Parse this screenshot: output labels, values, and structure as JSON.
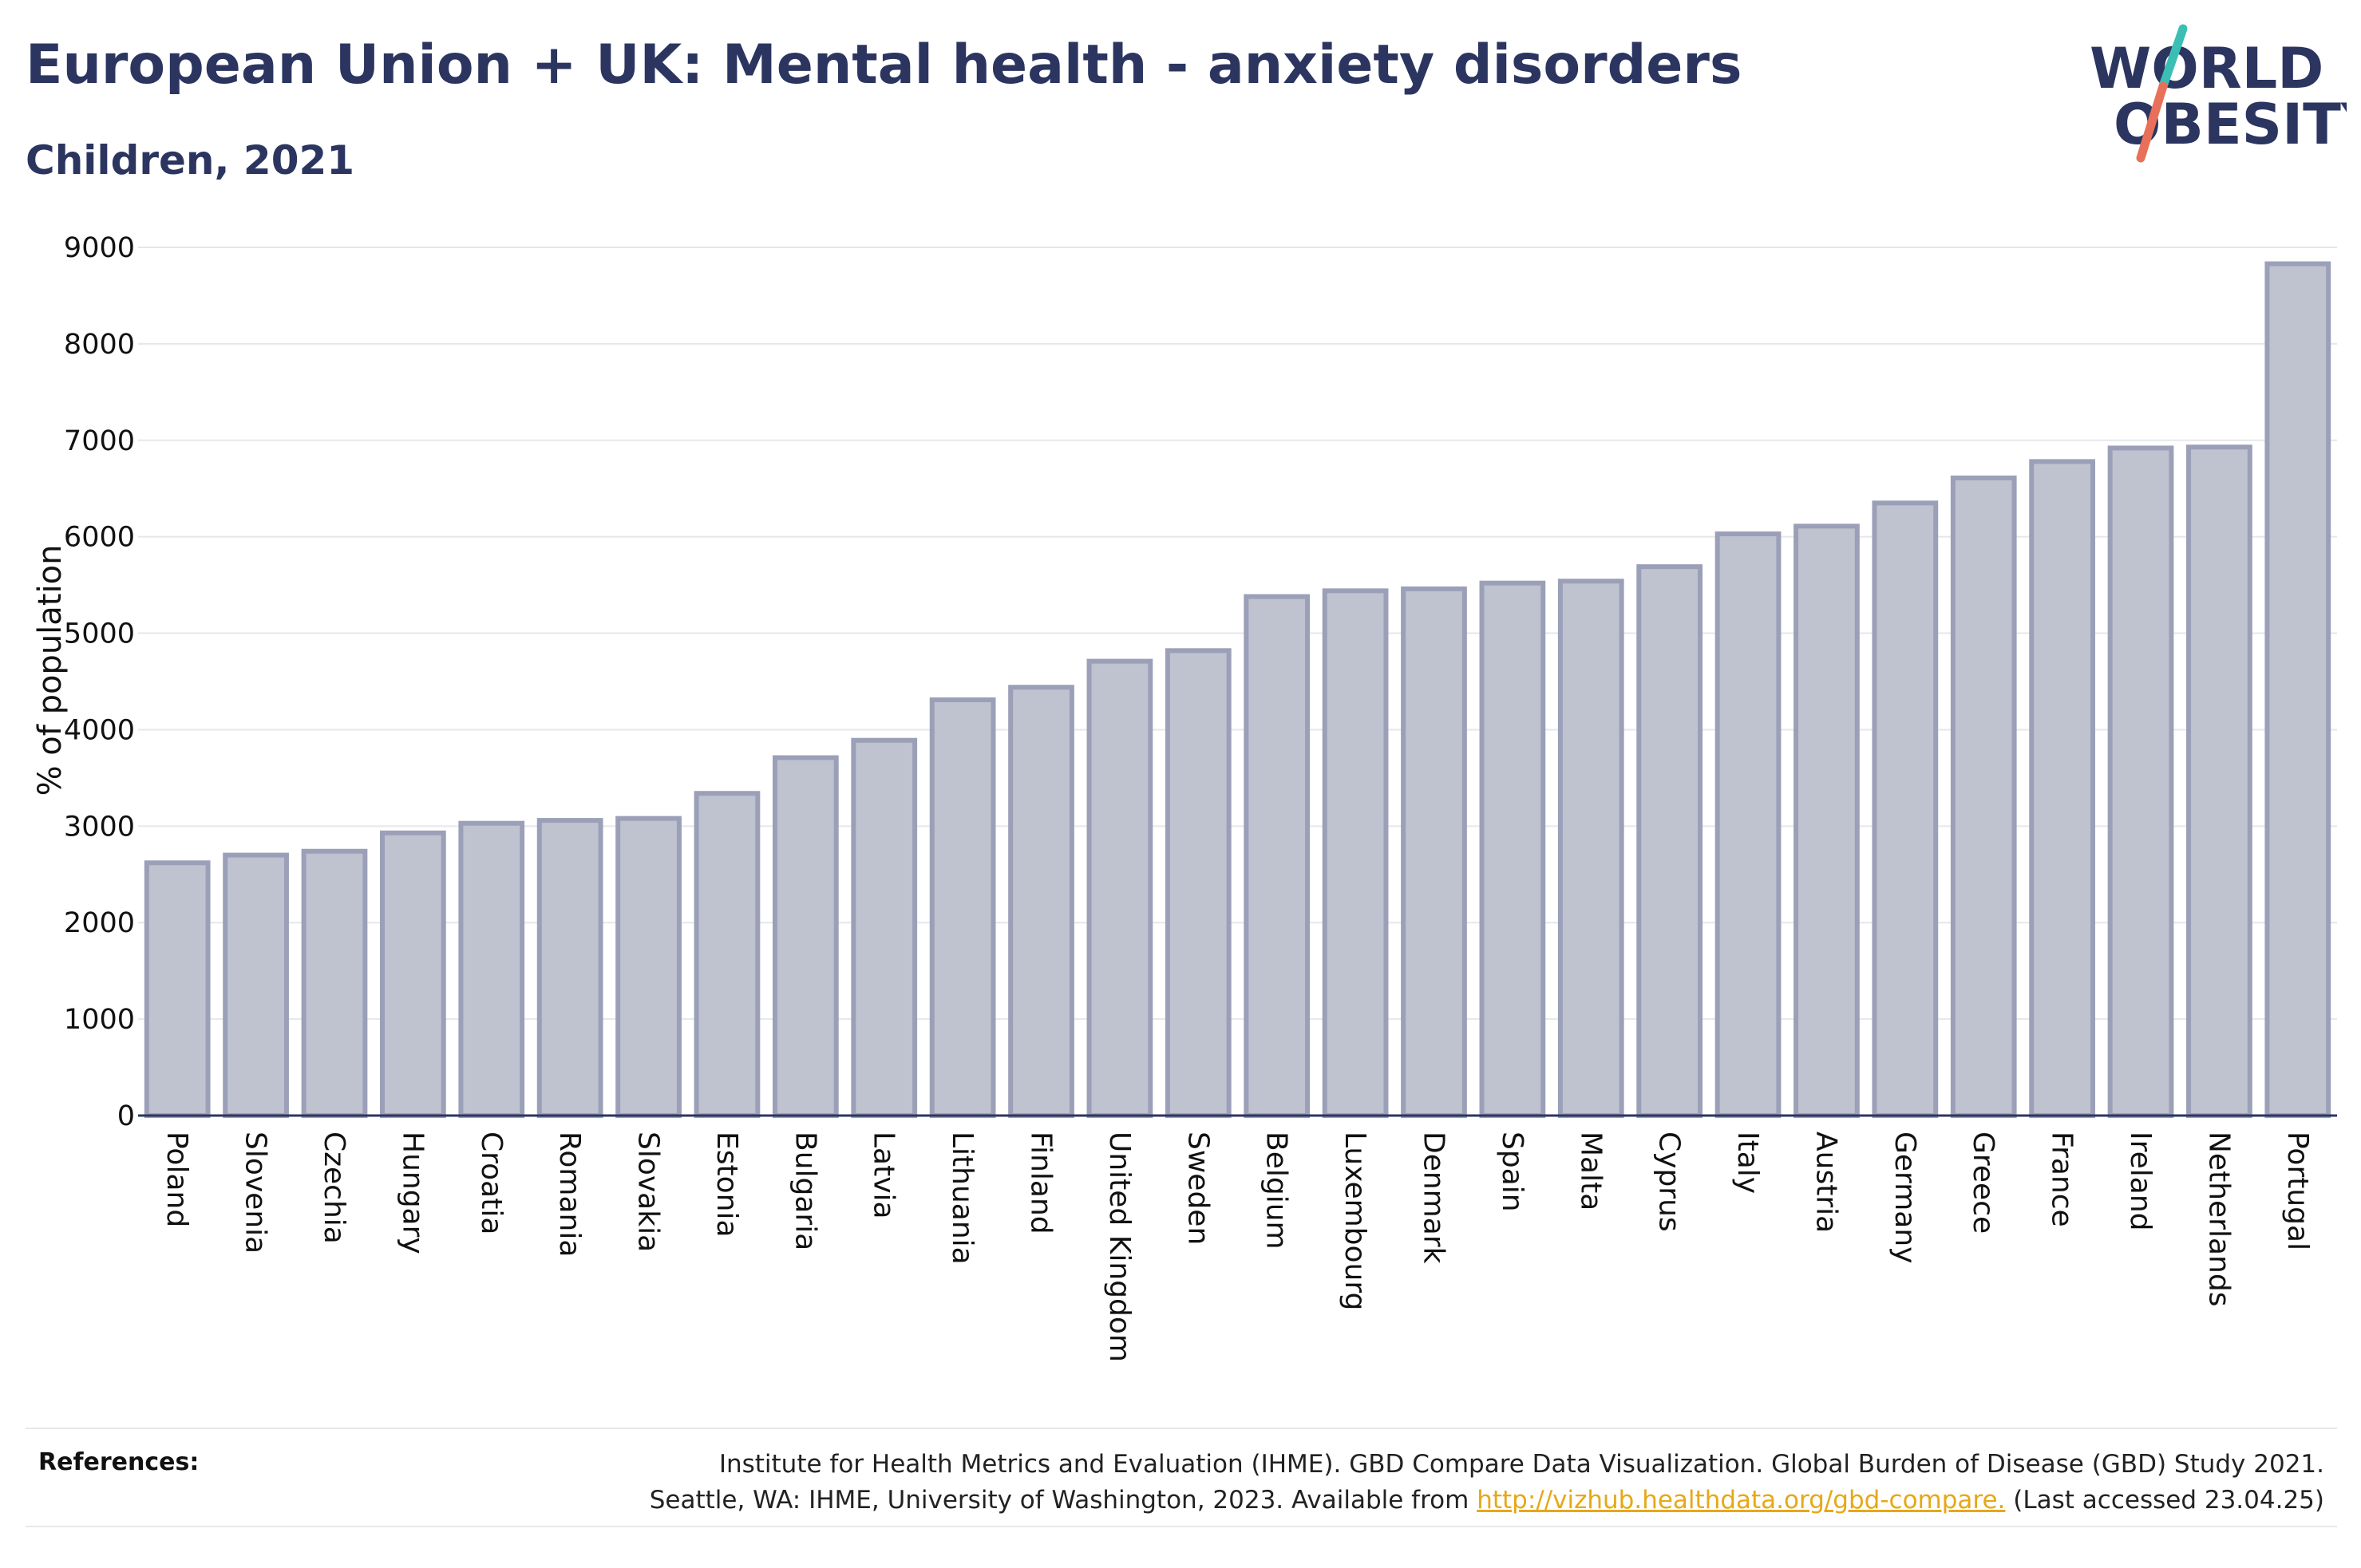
{
  "header": {
    "title": "European Union + UK: Mental health - anxiety disorders",
    "subtitle": "Children, 2021"
  },
  "logo": {
    "line1": "WORLD",
    "line2": "OBESITY",
    "text_color": "#2b3560",
    "slash_top_color": "#3bbfb5",
    "slash_bottom_color": "#e8705a"
  },
  "chart_data": {
    "type": "bar",
    "title": "European Union + UK: Mental health - anxiety disorders",
    "subtitle": "Children, 2021",
    "xlabel": "",
    "ylabel": "% of population",
    "ylim": [
      0,
      9000
    ],
    "yticks": [
      0,
      1000,
      2000,
      3000,
      4000,
      5000,
      6000,
      7000,
      8000,
      9000
    ],
    "grid": true,
    "bar_fill": "#bfc2cf",
    "bar_stroke": "#9ba0b8",
    "categories": [
      "Poland",
      "Slovenia",
      "Czechia",
      "Hungary",
      "Croatia",
      "Romania",
      "Slovakia",
      "Estonia",
      "Bulgaria",
      "Latvia",
      "Lithuania",
      "Finland",
      "United Kingdom",
      "Sweden",
      "Belgium",
      "Luxembourg",
      "Denmark",
      "Spain",
      "Malta",
      "Cyprus",
      "Italy",
      "Austria",
      "Germany",
      "Greece",
      "France",
      "Ireland",
      "Netherlands",
      "Portugal"
    ],
    "values": [
      2620,
      2700,
      2740,
      2930,
      3030,
      3060,
      3080,
      3340,
      3710,
      3890,
      4310,
      4440,
      4710,
      4820,
      5380,
      5440,
      5460,
      5520,
      5540,
      5690,
      6030,
      6110,
      6350,
      6610,
      6780,
      6920,
      6930,
      8830
    ]
  },
  "footer": {
    "references_label": "References:",
    "line1": "Institute for Health Metrics and Evaluation (IHME). GBD Compare Data Visualization. Global Burden of Disease (GBD) Study 2021.",
    "line2_prefix": "Seattle, WA: IHME, University of Washington, 2023. Available from ",
    "link_text": "http://vizhub.healthdata.org/gbd-compare.",
    "line2_suffix": " (Last accessed 23.04.25)"
  }
}
